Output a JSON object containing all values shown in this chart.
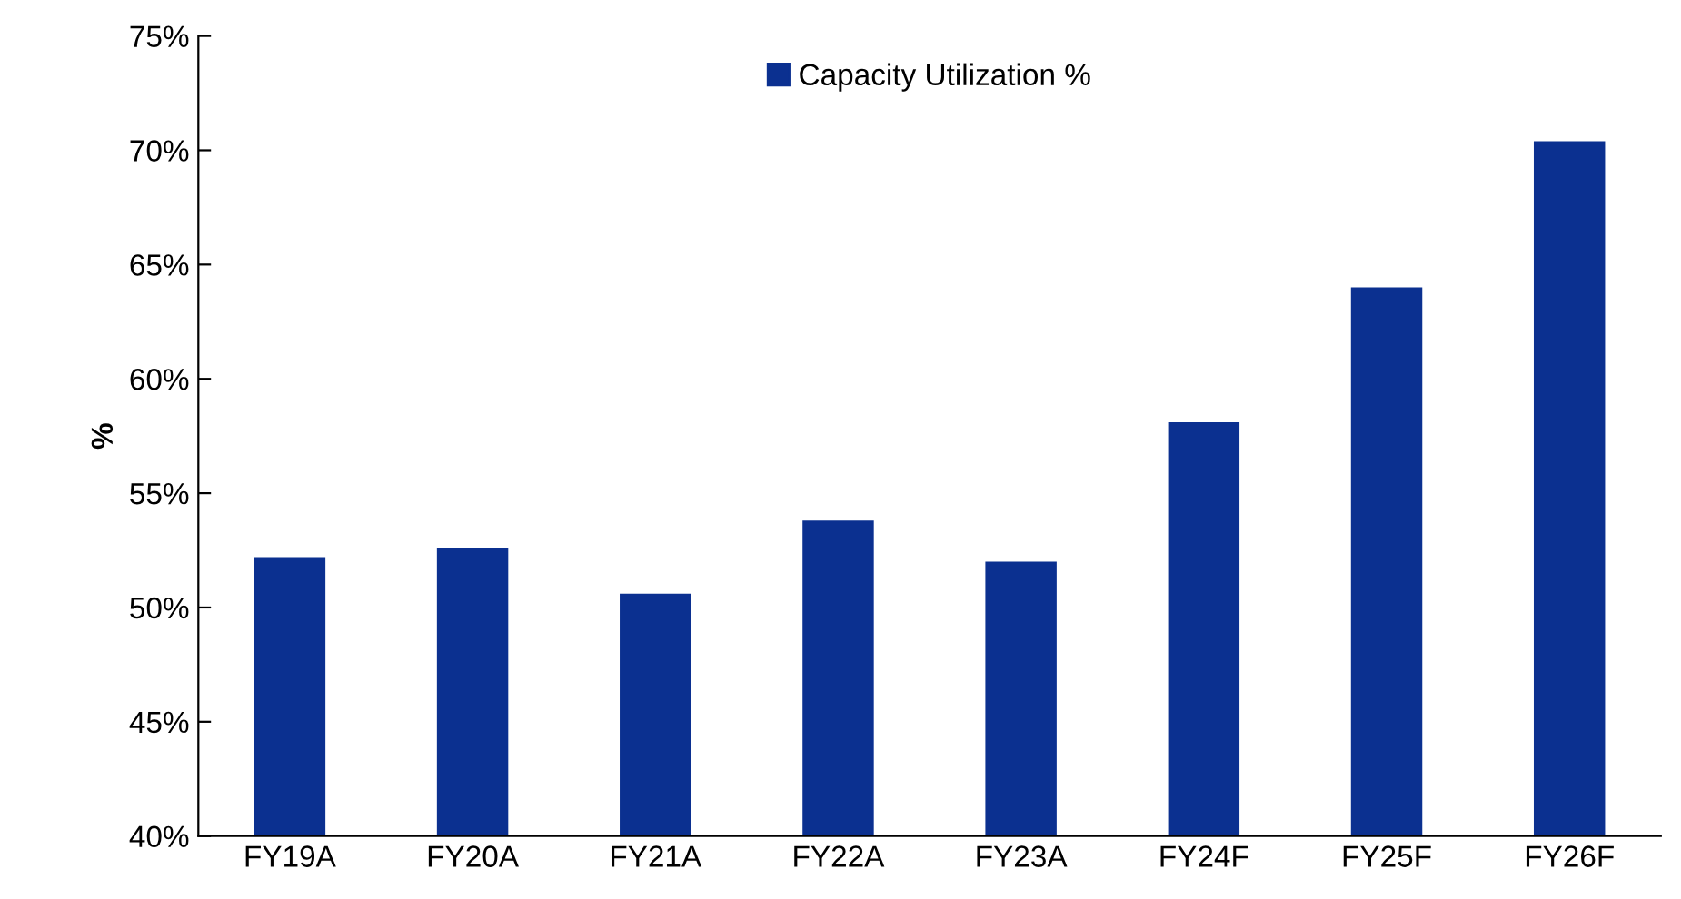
{
  "chart_data": {
    "type": "bar",
    "ylabel": "%",
    "categories": [
      "FY19A",
      "FY20A",
      "FY21A",
      "FY22A",
      "FY23A",
      "FY24F",
      "FY25F",
      "FY26F"
    ],
    "series": [
      {
        "name": "Capacity Utilization %",
        "color": "#0b3090",
        "values": [
          52.2,
          52.6,
          50.6,
          53.8,
          52.0,
          58.1,
          64.0,
          70.4
        ]
      }
    ],
    "ylim": [
      40,
      75
    ],
    "yticks": [
      {
        "value": 40,
        "label": "40%"
      },
      {
        "value": 45,
        "label": "45%"
      },
      {
        "value": 50,
        "label": "50%"
      },
      {
        "value": 55,
        "label": "55%"
      },
      {
        "value": 60,
        "label": "60%"
      },
      {
        "value": 65,
        "label": "65%"
      },
      {
        "value": 70,
        "label": "70%"
      },
      {
        "value": 75,
        "label": "75%"
      }
    ],
    "grid": false,
    "legend": "top"
  }
}
